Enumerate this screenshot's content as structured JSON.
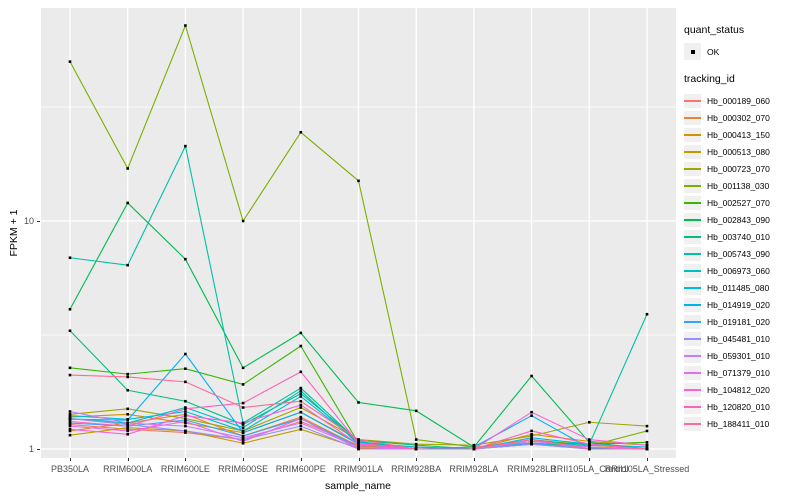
{
  "chart_data": {
    "type": "line",
    "xlabel": "sample_name",
    "ylabel": "FPKM + 1",
    "y_scale": "log10",
    "y_ticks": [
      1,
      10
    ],
    "y_minor_gridlines": [
      3.1623,
      31.623
    ],
    "ylim": [
      0.91,
      86
    ],
    "panel_bg": "#EBEBEB",
    "grid_color": "#FFFFFF",
    "point_color": "#000000",
    "legend": {
      "quant_status_title": "quant_status",
      "ok_label": "OK",
      "tracking_id_title": "tracking_id"
    },
    "x_categories": [
      "PB350LA",
      "RRIM600LA",
      "RRIM600LE",
      "RRIM600SE",
      "RRIM600PE",
      "RRIM901LA",
      "RRIM928BA",
      "RRIM928LA",
      "RRIM928LB",
      "RRII105LA_Control",
      "RRII105LA_Stressed"
    ],
    "series": [
      {
        "name": "Hb_000189_060",
        "color": "#F8766D",
        "values": [
          1.28,
          1.22,
          1.18,
          1.1,
          1.32,
          1.04,
          1.0,
          1.0,
          1.06,
          1.02,
          1.0
        ]
      },
      {
        "name": "Hb_000302_070",
        "color": "#EA8331",
        "values": [
          1.2,
          1.3,
          1.42,
          1.14,
          1.38,
          1.03,
          1.0,
          1.0,
          1.1,
          1.04,
          1.0
        ]
      },
      {
        "name": "Hb_000413_150",
        "color": "#D89000",
        "values": [
          1.38,
          1.42,
          1.3,
          1.18,
          1.45,
          1.06,
          1.02,
          1.0,
          1.16,
          1.08,
          1.04
        ]
      },
      {
        "name": "Hb_000513_080",
        "color": "#C09B00",
        "values": [
          1.15,
          1.24,
          1.2,
          1.06,
          1.22,
          1.01,
          1.0,
          1.0,
          1.05,
          1.0,
          1.0
        ]
      },
      {
        "name": "Hb_000723_070",
        "color": "#A3A500",
        "values": [
          1.42,
          1.5,
          1.36,
          1.2,
          1.52,
          1.1,
          1.05,
          1.04,
          1.14,
          1.31,
          1.26
        ]
      },
      {
        "name": "Hb_001138_030",
        "color": "#7CAE00",
        "values": [
          50,
          17,
          72,
          10,
          24.5,
          15,
          1.1,
          1.02,
          1.06,
          1.03,
          1.2
        ]
      },
      {
        "name": "Hb_002527_070",
        "color": "#39B600",
        "values": [
          2.27,
          2.13,
          2.25,
          1.92,
          2.83,
          1.06,
          1.0,
          1.0,
          1.08,
          1.05,
          1.07
        ]
      },
      {
        "name": "Hb_002843_090",
        "color": "#00BB4E",
        "values": [
          4.1,
          12,
          6.8,
          2.27,
          3.23,
          1.6,
          1.47,
          1.02,
          2.09,
          1.07,
          1.0
        ]
      },
      {
        "name": "Hb_003740_010",
        "color": "#00BF7D",
        "values": [
          3.3,
          1.81,
          1.62,
          1.28,
          1.75,
          1.09,
          1.04,
          1.0,
          1.1,
          1.0,
          1.0
        ]
      },
      {
        "name": "Hb_005743_090",
        "color": "#00C1A3",
        "values": [
          6.9,
          6.4,
          21.3,
          1.3,
          1.85,
          1.08,
          1.0,
          1.0,
          1.05,
          1.05,
          3.9
        ]
      },
      {
        "name": "Hb_006973_060",
        "color": "#00BFC4",
        "values": [
          1.36,
          1.3,
          1.52,
          1.24,
          1.8,
          1.05,
          1.0,
          1.0,
          1.1,
          1.02,
          1.0
        ]
      },
      {
        "name": "Hb_011485_080",
        "color": "#00BAE0",
        "values": [
          1.4,
          1.35,
          1.46,
          1.2,
          1.7,
          1.07,
          1.02,
          1.0,
          1.12,
          1.05,
          1.02
        ]
      },
      {
        "name": "Hb_014919_020",
        "color": "#00B0F6",
        "values": [
          1.35,
          1.34,
          2.61,
          1.18,
          1.45,
          1.05,
          1.0,
          1.02,
          1.4,
          1.01,
          1.0
        ]
      },
      {
        "name": "Hb_019181_020",
        "color": "#35A2FF",
        "values": [
          1.3,
          1.26,
          1.34,
          1.14,
          1.36,
          1.02,
          1.0,
          1.0,
          1.06,
          1.0,
          1.0
        ]
      },
      {
        "name": "Hb_045481_010",
        "color": "#9590FF",
        "values": [
          1.36,
          1.28,
          1.2,
          1.1,
          1.26,
          1.0,
          1.0,
          1.0,
          1.05,
          1.0,
          1.0
        ]
      },
      {
        "name": "Hb_059301_010",
        "color": "#C77CFF",
        "values": [
          1.46,
          1.3,
          1.26,
          1.12,
          1.3,
          1.02,
          1.0,
          1.0,
          1.08,
          1.02,
          1.0
        ]
      },
      {
        "name": "Hb_071379_010",
        "color": "#E76BF3",
        "values": [
          1.26,
          1.2,
          1.32,
          1.08,
          1.36,
          1.0,
          1.0,
          1.0,
          1.1,
          1.0,
          1.0
        ]
      },
      {
        "name": "Hb_104812_020",
        "color": "#FA62DB",
        "values": [
          1.22,
          1.16,
          1.4,
          1.3,
          1.56,
          1.05,
          1.0,
          1.0,
          1.45,
          1.1,
          1.04
        ]
      },
      {
        "name": "Hb_120820_010",
        "color": "#FF62BC",
        "values": [
          1.32,
          1.26,
          1.5,
          1.59,
          2.18,
          1.06,
          1.0,
          1.0,
          1.2,
          1.05,
          1.0
        ]
      },
      {
        "name": "Hb_188411_010",
        "color": "#FF6A98",
        "values": [
          2.11,
          2.07,
          1.97,
          1.52,
          1.62,
          1.1,
          1.0,
          1.0,
          1.1,
          1.0,
          1.0
        ]
      }
    ]
  }
}
